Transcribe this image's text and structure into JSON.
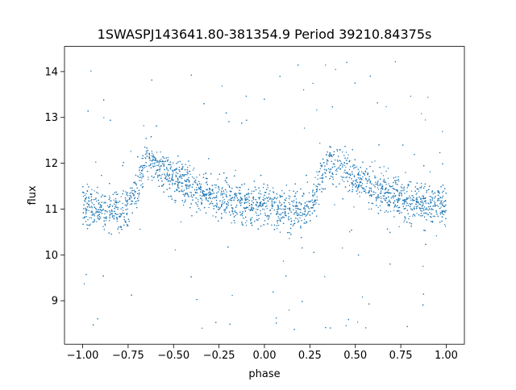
{
  "chart_data": {
    "type": "scatter",
    "title": "1SWASPJ143641.80-381354.9 Period 39210.84375s",
    "xlabel": "phase",
    "ylabel": "flux",
    "xlim": [
      -1.1,
      1.1
    ],
    "ylim": [
      8.05,
      14.55
    ],
    "xticks": [
      "−1.00",
      "−0.75",
      "−0.50",
      "−0.25",
      "0.00",
      "0.25",
      "0.50",
      "0.75",
      "1.00"
    ],
    "xtick_values": [
      -1.0,
      -0.75,
      -0.5,
      -0.25,
      0.0,
      0.25,
      0.5,
      0.75,
      1.0
    ],
    "yticks": [
      "9",
      "10",
      "11",
      "12",
      "13",
      "14"
    ],
    "ytick_values": [
      9,
      10,
      11,
      12,
      13,
      14
    ],
    "grid": false,
    "legend": "none",
    "point_color": "#1f77b4",
    "series": [
      {
        "profile_phase": [
          0.0,
          0.1,
          0.2,
          0.25,
          0.3,
          0.35,
          0.4,
          0.5,
          0.6,
          0.7,
          0.8,
          0.9,
          1.0
        ],
        "profile_flux": [
          11.1,
          11.0,
          10.95,
          11.05,
          11.5,
          12.1,
          11.95,
          11.7,
          11.45,
          11.3,
          11.2,
          11.1,
          11.1
        ],
        "profile_phase_range": [
          -1.0,
          1.0
        ],
        "scatter_sigma": 0.22,
        "y_extent": [
          8.3,
          14.3
        ]
      }
    ]
  }
}
